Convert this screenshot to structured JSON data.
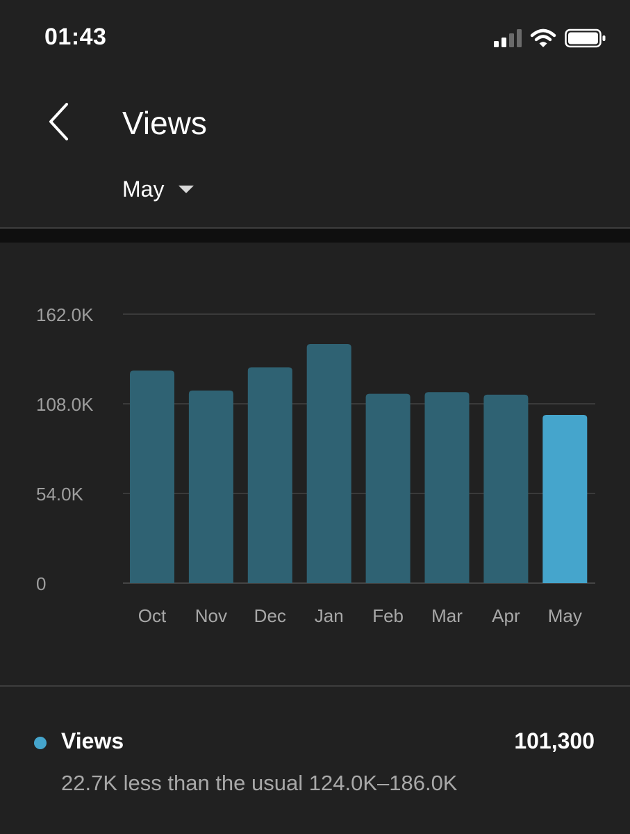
{
  "status_bar": {
    "time": "01:43",
    "icons": [
      "cellular-signal-icon",
      "wifi-icon",
      "battery-icon"
    ]
  },
  "header": {
    "back_icon": "chevron-left-icon",
    "title": "Views",
    "period": {
      "selected": "May",
      "caret_icon": "caret-down-icon"
    }
  },
  "colors": {
    "background": "#212121",
    "bar": "#2f6273",
    "bar_highlight": "#45a5cc",
    "gridline": "#3a3a3a",
    "muted_text": "#a8a8a8"
  },
  "chart_data": {
    "type": "bar",
    "categories": [
      "Oct",
      "Nov",
      "Dec",
      "Jan",
      "Feb",
      "Mar",
      "Apr",
      "May"
    ],
    "values": [
      128000,
      116000,
      130000,
      144000,
      114000,
      115000,
      113500,
      101300
    ],
    "highlight_index": 7,
    "y_ticks": [
      {
        "value": 0,
        "label": "0"
      },
      {
        "value": 54000,
        "label": "54.0K"
      },
      {
        "value": 108000,
        "label": "108.0K"
      },
      {
        "value": 162000,
        "label": "162.0K"
      }
    ],
    "ylim": [
      0,
      162000
    ],
    "grid": true,
    "title": "",
    "xlabel": "",
    "ylabel": ""
  },
  "summary": {
    "metric_name": "Views",
    "metric_value": "101,300",
    "note": "22.7K less than the usual 124.0K–186.0K"
  }
}
